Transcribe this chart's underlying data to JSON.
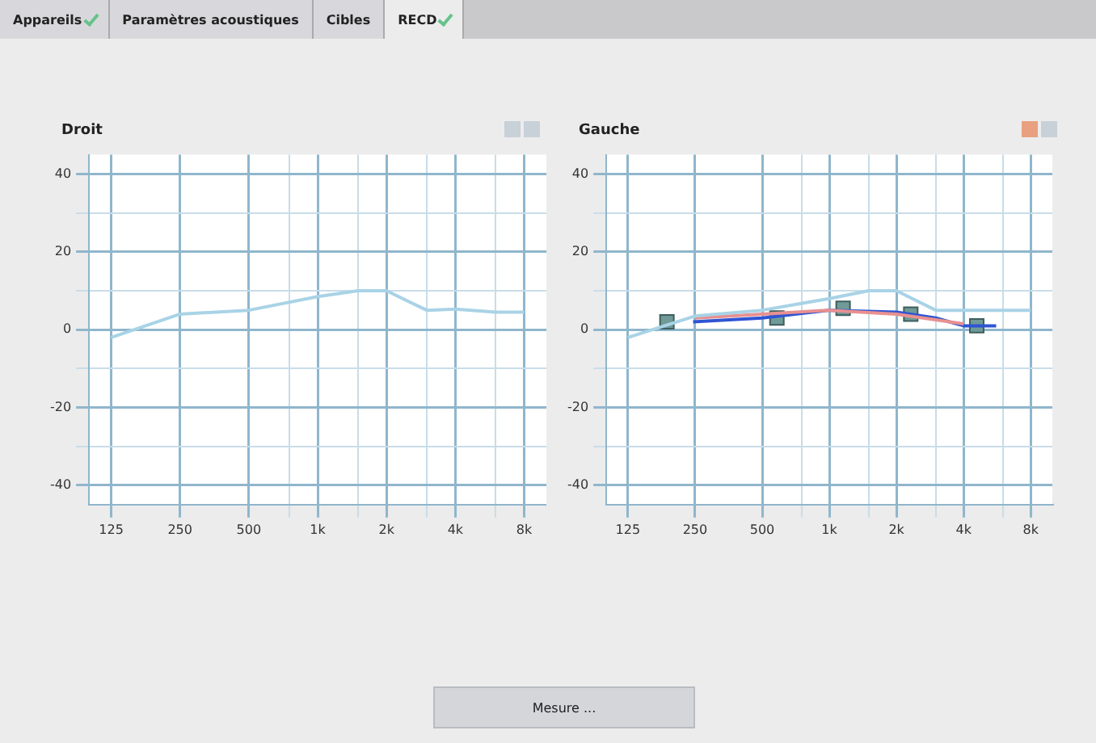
{
  "chart_data": [
    {
      "type": "line",
      "title": "Droit",
      "xlim": [
        100,
        10000
      ],
      "ylim": [
        -45,
        45
      ],
      "xticks": [
        125,
        250,
        500,
        {
          "value": 750,
          "label": null
        },
        {
          "value": 1000,
          "label": "1k"
        },
        {
          "value": 1500,
          "label": null
        },
        {
          "value": 2000,
          "label": "2k"
        },
        {
          "value": 3000,
          "label": null
        },
        {
          "value": 4000,
          "label": "4k"
        },
        {
          "value": 6000,
          "label": null
        },
        {
          "value": 8000,
          "label": "8k"
        }
      ],
      "yticks": [
        -40,
        {
          "value": -30,
          "label": null
        },
        -20,
        {
          "value": -10,
          "label": null
        },
        0,
        {
          "value": 10,
          "label": null
        },
        20,
        {
          "value": 30,
          "label": null
        },
        40
      ],
      "log": "x",
      "grid": true,
      "series": [
        {
          "type": "line",
          "color": "#a9d3e6",
          "marker": "none",
          "x": [
            125,
            250,
            500,
            1000,
            1500,
            2000,
            3000,
            4000,
            6000,
            8000
          ],
          "values": [
            -2,
            4,
            5,
            8.5,
            10,
            10,
            5,
            5.3,
            4.5,
            4.5
          ]
        }
      ]
    },
    {
      "type": "line",
      "title": "Gauche",
      "xlim": [
        100,
        10000
      ],
      "ylim": [
        -45,
        45
      ],
      "xticks": [
        125,
        250,
        500,
        {
          "value": 750,
          "label": null
        },
        {
          "value": 1000,
          "label": "1k"
        },
        {
          "value": 1500,
          "label": null
        },
        {
          "value": 2000,
          "label": "2k"
        },
        {
          "value": 3000,
          "label": null
        },
        {
          "value": 4000,
          "label": "4k"
        },
        {
          "value": 6000,
          "label": null
        },
        {
          "value": 8000,
          "label": "8k"
        }
      ],
      "yticks": [
        -40,
        {
          "value": -30,
          "label": null
        },
        -20,
        {
          "value": -10,
          "label": null
        },
        0,
        {
          "value": 10,
          "label": null
        },
        20,
        {
          "value": 30,
          "label": null
        },
        40
      ],
      "log": "x",
      "grid": true,
      "series": [
        {
          "type": "line",
          "color": "#a9d3e6",
          "marker": "none",
          "x": [
            125,
            250,
            500,
            1000,
            1500,
            2000,
            3000,
            4000,
            6000,
            8000
          ],
          "values": [
            -2,
            3.5,
            5,
            8,
            10,
            10,
            5,
            5,
            5,
            5
          ]
        },
        {
          "type": "line",
          "color": "#e89090",
          "marker": "none",
          "x": [
            250,
            500,
            1000,
            2000,
            4000
          ],
          "values": [
            3,
            4,
            5,
            4,
            1.5
          ]
        },
        {
          "type": "line",
          "color": "#2f55d4",
          "marker": "none",
          "x": [
            245,
            500,
            1000,
            2000,
            3000,
            4000,
            5600
          ],
          "values": [
            2,
            3,
            5,
            4.5,
            3,
            1,
            1
          ]
        },
        {
          "type": "scatter",
          "color": "#6f9a98",
          "marker": "square",
          "x": [
            187,
            582,
            1153,
            2318,
            4582
          ],
          "values": [
            2,
            3,
            5.5,
            4,
            1
          ]
        }
      ]
    },
    {
      "type": "other",
      "annotations": [
        "Appareils",
        "Paramètres acoustiques",
        "Cibles",
        "RECD",
        "Mesure ..."
      ]
    }
  ]
}
